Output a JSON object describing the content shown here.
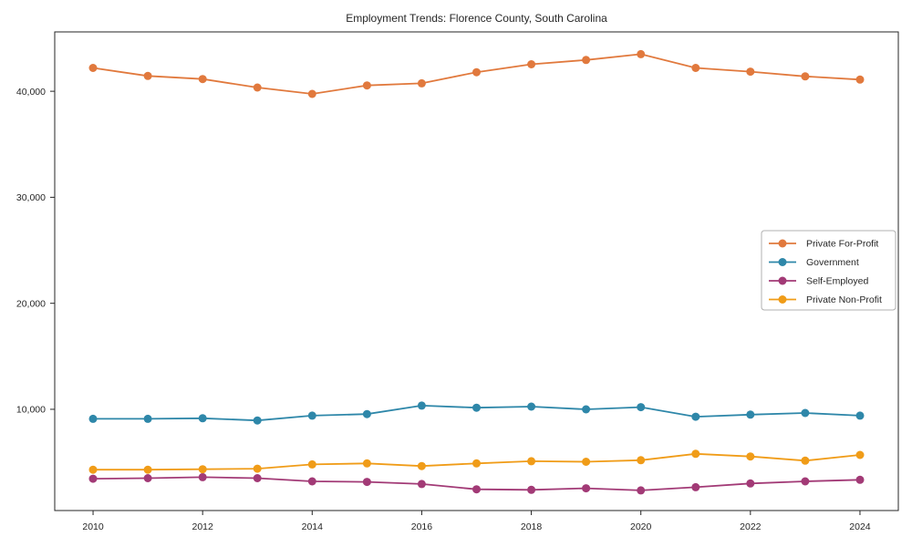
{
  "figure": {
    "background": "#ffffff",
    "axis_color": "#262626",
    "legend_border_color": "#b0b0b0"
  },
  "chart_data": {
    "type": "line",
    "title": "Employment Trends: Florence County, South Carolina",
    "xlabel": "",
    "ylabel": "",
    "grid": false,
    "marker": "circle",
    "x": [
      2010,
      2011,
      2012,
      2013,
      2014,
      2015,
      2016,
      2017,
      2018,
      2019,
      2020,
      2021,
      2022,
      2023,
      2024
    ],
    "series": [
      {
        "name": "Private For-Profit",
        "color": "#e1793d",
        "values": [
          42200,
          41450,
          41150,
          40350,
          39750,
          40550,
          40750,
          41800,
          42550,
          42950,
          43500,
          42200,
          41850,
          41400,
          41100
        ]
      },
      {
        "name": "Government",
        "color": "#2e87a9",
        "values": [
          9100,
          9100,
          9150,
          8950,
          9400,
          9550,
          10350,
          10150,
          10250,
          10000,
          10200,
          9300,
          9500,
          9650,
          9400
        ]
      },
      {
        "name": "Self-Employed",
        "color": "#a23a76",
        "values": [
          3450,
          3500,
          3600,
          3500,
          3200,
          3150,
          2950,
          2450,
          2400,
          2550,
          2350,
          2650,
          3000,
          3200,
          3350
        ]
      },
      {
        "name": "Private Non-Profit",
        "color": "#f09c18",
        "values": [
          4300,
          4300,
          4350,
          4400,
          4800,
          4900,
          4650,
          4900,
          5100,
          5050,
          5200,
          5800,
          5550,
          5150,
          5700
        ]
      }
    ],
    "xlim": [
      2009.3,
      2024.7
    ],
    "ylim": [
      450,
      45600
    ],
    "x_ticks": [
      {
        "value": 2010,
        "label": "2010"
      },
      {
        "value": 2012,
        "label": "2012"
      },
      {
        "value": 2014,
        "label": "2014"
      },
      {
        "value": 2016,
        "label": "2016"
      },
      {
        "value": 2018,
        "label": "2018"
      },
      {
        "value": 2020,
        "label": "2020"
      },
      {
        "value": 2022,
        "label": "2022"
      },
      {
        "value": 2024,
        "label": "2024"
      }
    ],
    "y_ticks": [
      {
        "value": 10000,
        "label": "10,000"
      },
      {
        "value": 20000,
        "label": "20,000"
      },
      {
        "value": 30000,
        "label": "30,000"
      },
      {
        "value": 40000,
        "label": "40,000"
      }
    ],
    "legend": {
      "position": "center right",
      "entries": [
        "Private For-Profit",
        "Government",
        "Self-Employed",
        "Private Non-Profit"
      ]
    }
  }
}
